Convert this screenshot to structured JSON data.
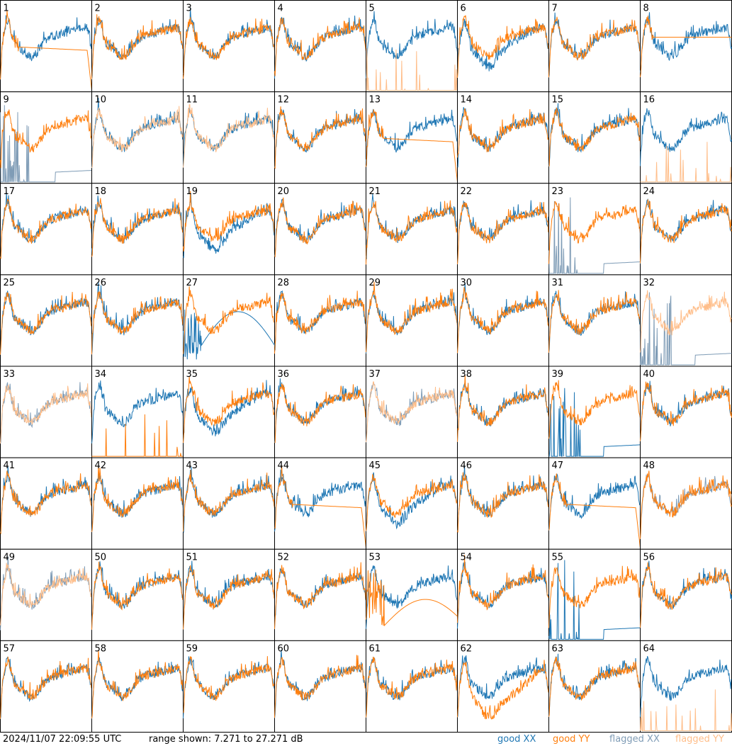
{
  "colors": {
    "good_xx": "#1f77b4",
    "good_yy": "#ff7f0e",
    "flagged_xx": "#7f9cb6",
    "flagged_yy": "#ffbe8a"
  },
  "footer": {
    "timestamp": "2024/11/07 22:09:55 UTC",
    "range": "range shown: 7.271 to 27.271 dB"
  },
  "legend": {
    "good_xx": "good XX",
    "good_yy": "good YY",
    "flagged_xx": "flagged XX",
    "flagged_yy": "flagged YY"
  },
  "chart_data": {
    "type": "line",
    "grid_rows": 8,
    "grid_cols": 8,
    "ylim_db": [
      7.271,
      27.271
    ],
    "panels": [
      {
        "label": "1",
        "x": "good_xx",
        "y": "good_yy",
        "note": "yy_rolloff"
      },
      {
        "label": "2",
        "x": "good_xx",
        "y": "good_yy"
      },
      {
        "label": "3",
        "x": "good_xx",
        "y": "good_yy"
      },
      {
        "label": "4",
        "x": "good_xx",
        "y": "good_yy"
      },
      {
        "label": "5",
        "x": "good_xx",
        "y": "flagged_yy",
        "note": "y_spikes"
      },
      {
        "label": "6",
        "x": "good_xx",
        "y": "good_yy",
        "note": "x_low"
      },
      {
        "label": "7",
        "x": "good_xx",
        "y": "good_yy"
      },
      {
        "label": "8",
        "x": "good_xx",
        "y": "good_yy",
        "note": "yy_flat"
      },
      {
        "label": "9",
        "x": "flagged_xx",
        "y": "good_yy",
        "note": "x_spikes"
      },
      {
        "label": "10",
        "x": "good_xx",
        "y": "flagged_yy"
      },
      {
        "label": "11",
        "x": "good_xx",
        "y": "flagged_yy"
      },
      {
        "label": "12",
        "x": "good_xx",
        "y": "good_yy"
      },
      {
        "label": "13",
        "x": "good_xx",
        "y": "good_yy",
        "note": "yy_rolloff"
      },
      {
        "label": "14",
        "x": "good_xx",
        "y": "good_yy"
      },
      {
        "label": "15",
        "x": "good_xx",
        "y": "good_yy"
      },
      {
        "label": "16",
        "x": "good_xx",
        "y": "flagged_yy",
        "note": "y_spikes"
      },
      {
        "label": "17",
        "x": "good_xx",
        "y": "good_yy"
      },
      {
        "label": "18",
        "x": "good_xx",
        "y": "good_yy"
      },
      {
        "label": "19",
        "x": "good_xx",
        "y": "good_yy",
        "note": "x_low"
      },
      {
        "label": "20",
        "x": "good_xx",
        "y": "good_yy"
      },
      {
        "label": "21",
        "x": "good_xx",
        "y": "good_yy"
      },
      {
        "label": "22",
        "x": "good_xx",
        "y": "good_yy"
      },
      {
        "label": "23",
        "x": "flagged_xx",
        "y": "good_yy",
        "note": "x_spikes"
      },
      {
        "label": "24",
        "x": "good_xx",
        "y": "good_yy"
      },
      {
        "label": "25",
        "x": "good_xx",
        "y": "good_yy"
      },
      {
        "label": "26",
        "x": "good_xx",
        "y": "good_yy"
      },
      {
        "label": "27",
        "x": "good_xx",
        "y": "good_yy",
        "note": "x_hump"
      },
      {
        "label": "28",
        "x": "good_xx",
        "y": "good_yy"
      },
      {
        "label": "29",
        "x": "good_xx",
        "y": "good_yy"
      },
      {
        "label": "30",
        "x": "good_xx",
        "y": "good_yy"
      },
      {
        "label": "31",
        "x": "good_xx",
        "y": "good_yy"
      },
      {
        "label": "32",
        "x": "flagged_xx",
        "y": "flagged_yy",
        "note": "x_spikes"
      },
      {
        "label": "33",
        "x": "flagged_xx",
        "y": "flagged_yy"
      },
      {
        "label": "34",
        "x": "good_xx",
        "y": "good_yy",
        "note": "y_spikes"
      },
      {
        "label": "35",
        "x": "good_xx",
        "y": "good_yy",
        "note": "x_low"
      },
      {
        "label": "36",
        "x": "good_xx",
        "y": "good_yy"
      },
      {
        "label": "37",
        "x": "flagged_xx",
        "y": "flagged_yy"
      },
      {
        "label": "38",
        "x": "good_xx",
        "y": "good_yy"
      },
      {
        "label": "39",
        "x": "good_xx",
        "y": "good_yy",
        "note": "x_spikes"
      },
      {
        "label": "40",
        "x": "good_xx",
        "y": "good_yy"
      },
      {
        "label": "41",
        "x": "good_xx",
        "y": "good_yy"
      },
      {
        "label": "42",
        "x": "good_xx",
        "y": "good_yy"
      },
      {
        "label": "43",
        "x": "good_xx",
        "y": "good_yy"
      },
      {
        "label": "44",
        "x": "good_xx",
        "y": "good_yy",
        "note": "yy_rolloff"
      },
      {
        "label": "45",
        "x": "good_xx",
        "y": "good_yy",
        "note": "x_low"
      },
      {
        "label": "46",
        "x": "good_xx",
        "y": "good_yy"
      },
      {
        "label": "47",
        "x": "good_xx",
        "y": "good_yy",
        "note": "yy_rolloff"
      },
      {
        "label": "48",
        "x": "flagged_xx",
        "y": "good_yy"
      },
      {
        "label": "49",
        "x": "flagged_xx",
        "y": "flagged_yy"
      },
      {
        "label": "50",
        "x": "good_xx",
        "y": "good_yy"
      },
      {
        "label": "51",
        "x": "good_xx",
        "y": "good_yy"
      },
      {
        "label": "52",
        "x": "good_xx",
        "y": "good_yy"
      },
      {
        "label": "53",
        "x": "good_xx",
        "y": "good_yy",
        "note": "yy_hump"
      },
      {
        "label": "54",
        "x": "good_xx",
        "y": "good_yy"
      },
      {
        "label": "55",
        "x": "good_xx",
        "y": "good_yy",
        "note": "x_spikes"
      },
      {
        "label": "56",
        "x": "good_xx",
        "y": "good_yy"
      },
      {
        "label": "57",
        "x": "good_xx",
        "y": "good_yy"
      },
      {
        "label": "58",
        "x": "good_xx",
        "y": "good_yy"
      },
      {
        "label": "59",
        "x": "good_xx",
        "y": "good_yy"
      },
      {
        "label": "60",
        "x": "good_xx",
        "y": "good_yy"
      },
      {
        "label": "61",
        "x": "good_xx",
        "y": "good_yy"
      },
      {
        "label": "62",
        "x": "good_xx",
        "y": "good_yy",
        "note": "y_low"
      },
      {
        "label": "63",
        "x": "good_xx",
        "y": "good_yy"
      },
      {
        "label": "64",
        "x": "good_xx",
        "y": "flagged_yy",
        "note": "y_spikes"
      }
    ]
  }
}
